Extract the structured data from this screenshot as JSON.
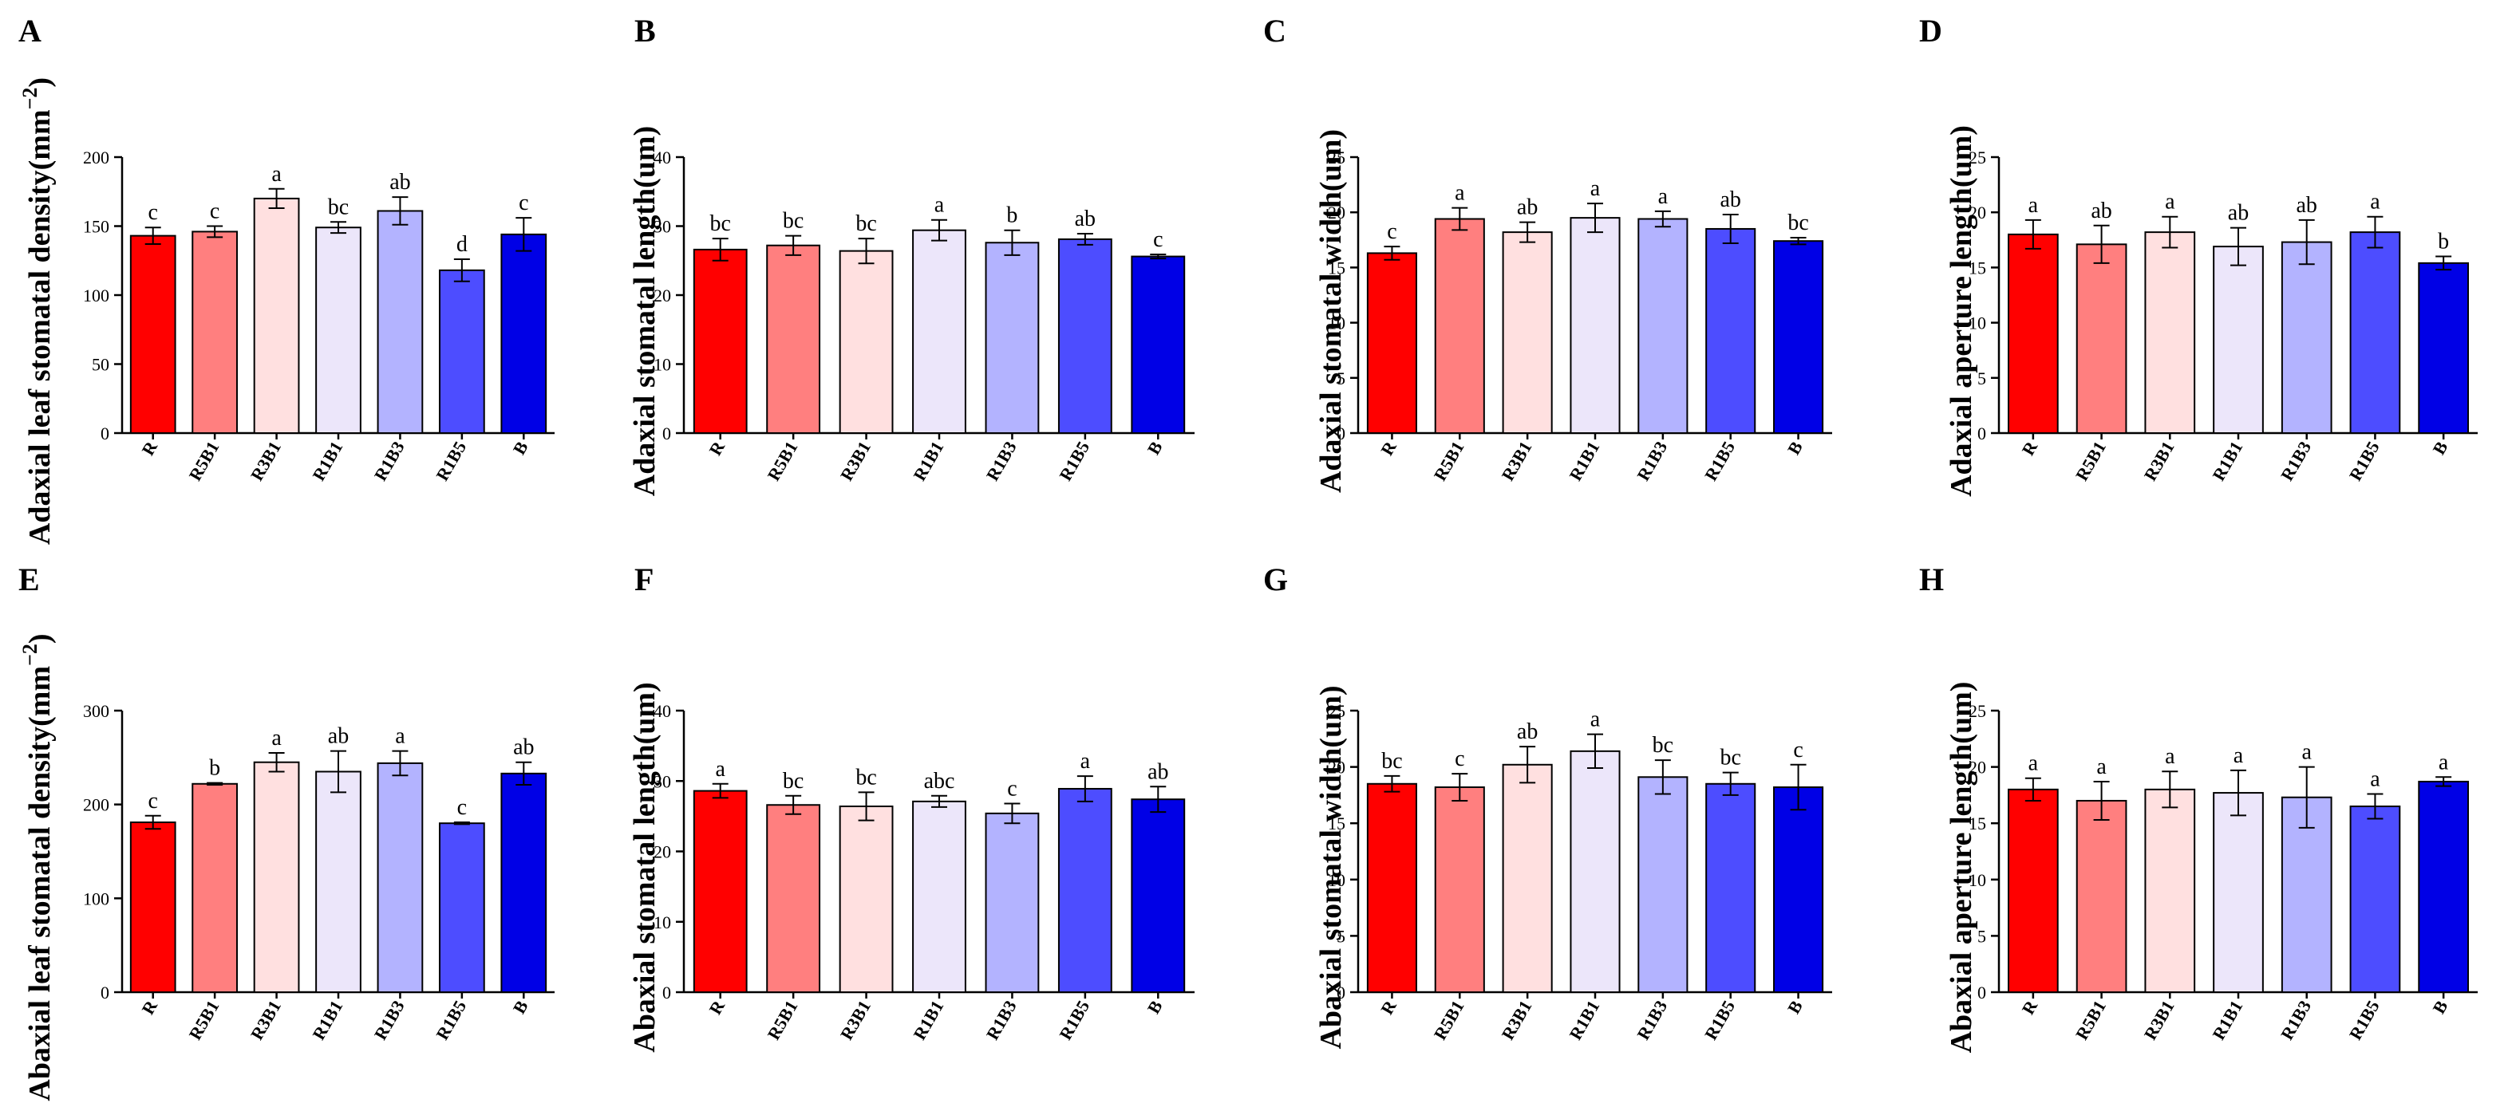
{
  "colors": [
    "#ff0000",
    "#ff7f7f",
    "#ffe0e0",
    "#ece6fa",
    "#b3b3ff",
    "#4d4dff",
    "#0000e6"
  ],
  "chart_data": [
    {
      "type": "bar",
      "panel": "A",
      "ylabel": "Adaxial leaf stomatal density(mm",
      "ylabel_sup": "−2",
      "ylabel_end": ")",
      "ylim": [
        0,
        200
      ],
      "yticks": [
        0,
        50,
        100,
        150,
        200
      ],
      "categories": [
        "R",
        "R5B1",
        "R3B1",
        "R1B1",
        "R1B3",
        "R1B5",
        "B"
      ],
      "values": [
        143,
        146,
        170,
        149,
        161,
        118,
        144
      ],
      "errors": [
        6,
        4,
        7,
        4,
        10,
        8,
        12
      ],
      "labels": [
        "c",
        "c",
        "a",
        "bc",
        "ab",
        "d",
        "c"
      ]
    },
    {
      "type": "bar",
      "panel": "B",
      "ylabel": "Adaxial stomatal length(um)",
      "ylim": [
        0,
        40
      ],
      "yticks": [
        0,
        10,
        20,
        30,
        40
      ],
      "categories": [
        "R",
        "R5B1",
        "R3B1",
        "R1B1",
        "R1B3",
        "R1B5",
        "B"
      ],
      "values": [
        26.6,
        27.2,
        26.4,
        29.4,
        27.6,
        28.1,
        25.6
      ],
      "errors": [
        1.6,
        1.4,
        1.8,
        1.5,
        1.8,
        0.8,
        0.3
      ],
      "labels": [
        "bc",
        "bc",
        "bc",
        "a",
        "b",
        "ab",
        "c"
      ]
    },
    {
      "type": "bar",
      "panel": "C",
      "ylabel": "Adaxial stomatal width(um)",
      "ylim": [
        0,
        25
      ],
      "yticks": [
        0,
        5,
        10,
        15,
        20,
        25
      ],
      "categories": [
        "R",
        "R5B1",
        "R3B1",
        "R1B1",
        "R1B3",
        "R1B5",
        "B"
      ],
      "values": [
        16.3,
        19.4,
        18.2,
        19.5,
        19.4,
        18.5,
        17.4
      ],
      "errors": [
        0.6,
        1.0,
        0.9,
        1.3,
        0.7,
        1.3,
        0.3
      ],
      "labels": [
        "c",
        "a",
        "ab",
        "a",
        "a",
        "ab",
        "bc"
      ]
    },
    {
      "type": "bar",
      "panel": "D",
      "ylabel": "Adaxial aperture length(um)",
      "ylim": [
        0,
        25
      ],
      "yticks": [
        0,
        5,
        10,
        15,
        20,
        25
      ],
      "categories": [
        "R",
        "R5B1",
        "R3B1",
        "R1B1",
        "R1B3",
        "R1B5",
        "B"
      ],
      "values": [
        18.0,
        17.1,
        18.2,
        16.9,
        17.3,
        18.2,
        15.4
      ],
      "errors": [
        1.3,
        1.7,
        1.4,
        1.7,
        2.0,
        1.4,
        0.6
      ],
      "labels": [
        "a",
        "ab",
        "a",
        "ab",
        "ab",
        "a",
        "b"
      ]
    },
    {
      "type": "bar",
      "panel": "E",
      "ylabel": "Abaxial leaf stomatal density(mm",
      "ylabel_sup": "−2",
      "ylabel_end": ")",
      "ylim": [
        0,
        300
      ],
      "yticks": [
        0,
        100,
        200,
        300
      ],
      "categories": [
        "R",
        "R5B1",
        "R3B1",
        "R1B1",
        "R1B3",
        "R1B5",
        "B"
      ],
      "values": [
        181,
        222,
        245,
        235,
        244,
        180,
        233
      ],
      "errors": [
        7,
        1,
        10,
        22,
        13,
        1,
        12
      ],
      "labels": [
        "c",
        "b",
        "a",
        "ab",
        "a",
        "c",
        "ab"
      ]
    },
    {
      "type": "bar",
      "panel": "F",
      "ylabel": "Abaxial stomatal length(um)",
      "ylim": [
        0,
        40
      ],
      "yticks": [
        0,
        10,
        20,
        30,
        40
      ],
      "categories": [
        "R",
        "R5B1",
        "R3B1",
        "R1B1",
        "R1B3",
        "R1B5",
        "B"
      ],
      "values": [
        28.6,
        26.6,
        26.4,
        27.1,
        25.4,
        28.9,
        27.4
      ],
      "errors": [
        1.0,
        1.3,
        2.0,
        0.8,
        1.4,
        1.8,
        1.8
      ],
      "labels": [
        "a",
        "bc",
        "bc",
        "abc",
        "c",
        "a",
        "ab"
      ]
    },
    {
      "type": "bar",
      "panel": "G",
      "ylabel": "Abaxial stomatal width(um)",
      "ylim": [
        0,
        25
      ],
      "yticks": [
        0,
        5,
        10,
        15,
        20,
        25
      ],
      "categories": [
        "R",
        "R5B1",
        "R3B1",
        "R1B1",
        "R1B3",
        "R1B5",
        "B"
      ],
      "values": [
        18.5,
        18.2,
        20.2,
        21.4,
        19.1,
        18.5,
        18.2
      ],
      "errors": [
        0.7,
        1.2,
        1.6,
        1.5,
        1.5,
        1.0,
        2.0
      ],
      "labels": [
        "bc",
        "c",
        "ab",
        "a",
        "bc",
        "bc",
        "c"
      ]
    },
    {
      "type": "bar",
      "panel": "H",
      "ylabel": "Abaxial aperture length(um)",
      "ylim": [
        0,
        25
      ],
      "yticks": [
        0,
        5,
        10,
        15,
        20,
        25
      ],
      "categories": [
        "R",
        "R5B1",
        "R3B1",
        "R1B1",
        "R1B3",
        "R1B5",
        "B"
      ],
      "values": [
        18.0,
        17.0,
        18.0,
        17.7,
        17.3,
        16.5,
        18.7
      ],
      "errors": [
        1.0,
        1.7,
        1.6,
        2.0,
        2.7,
        1.1,
        0.4
      ],
      "labels": [
        "a",
        "a",
        "a",
        "a",
        "a",
        "a",
        "a"
      ]
    }
  ]
}
